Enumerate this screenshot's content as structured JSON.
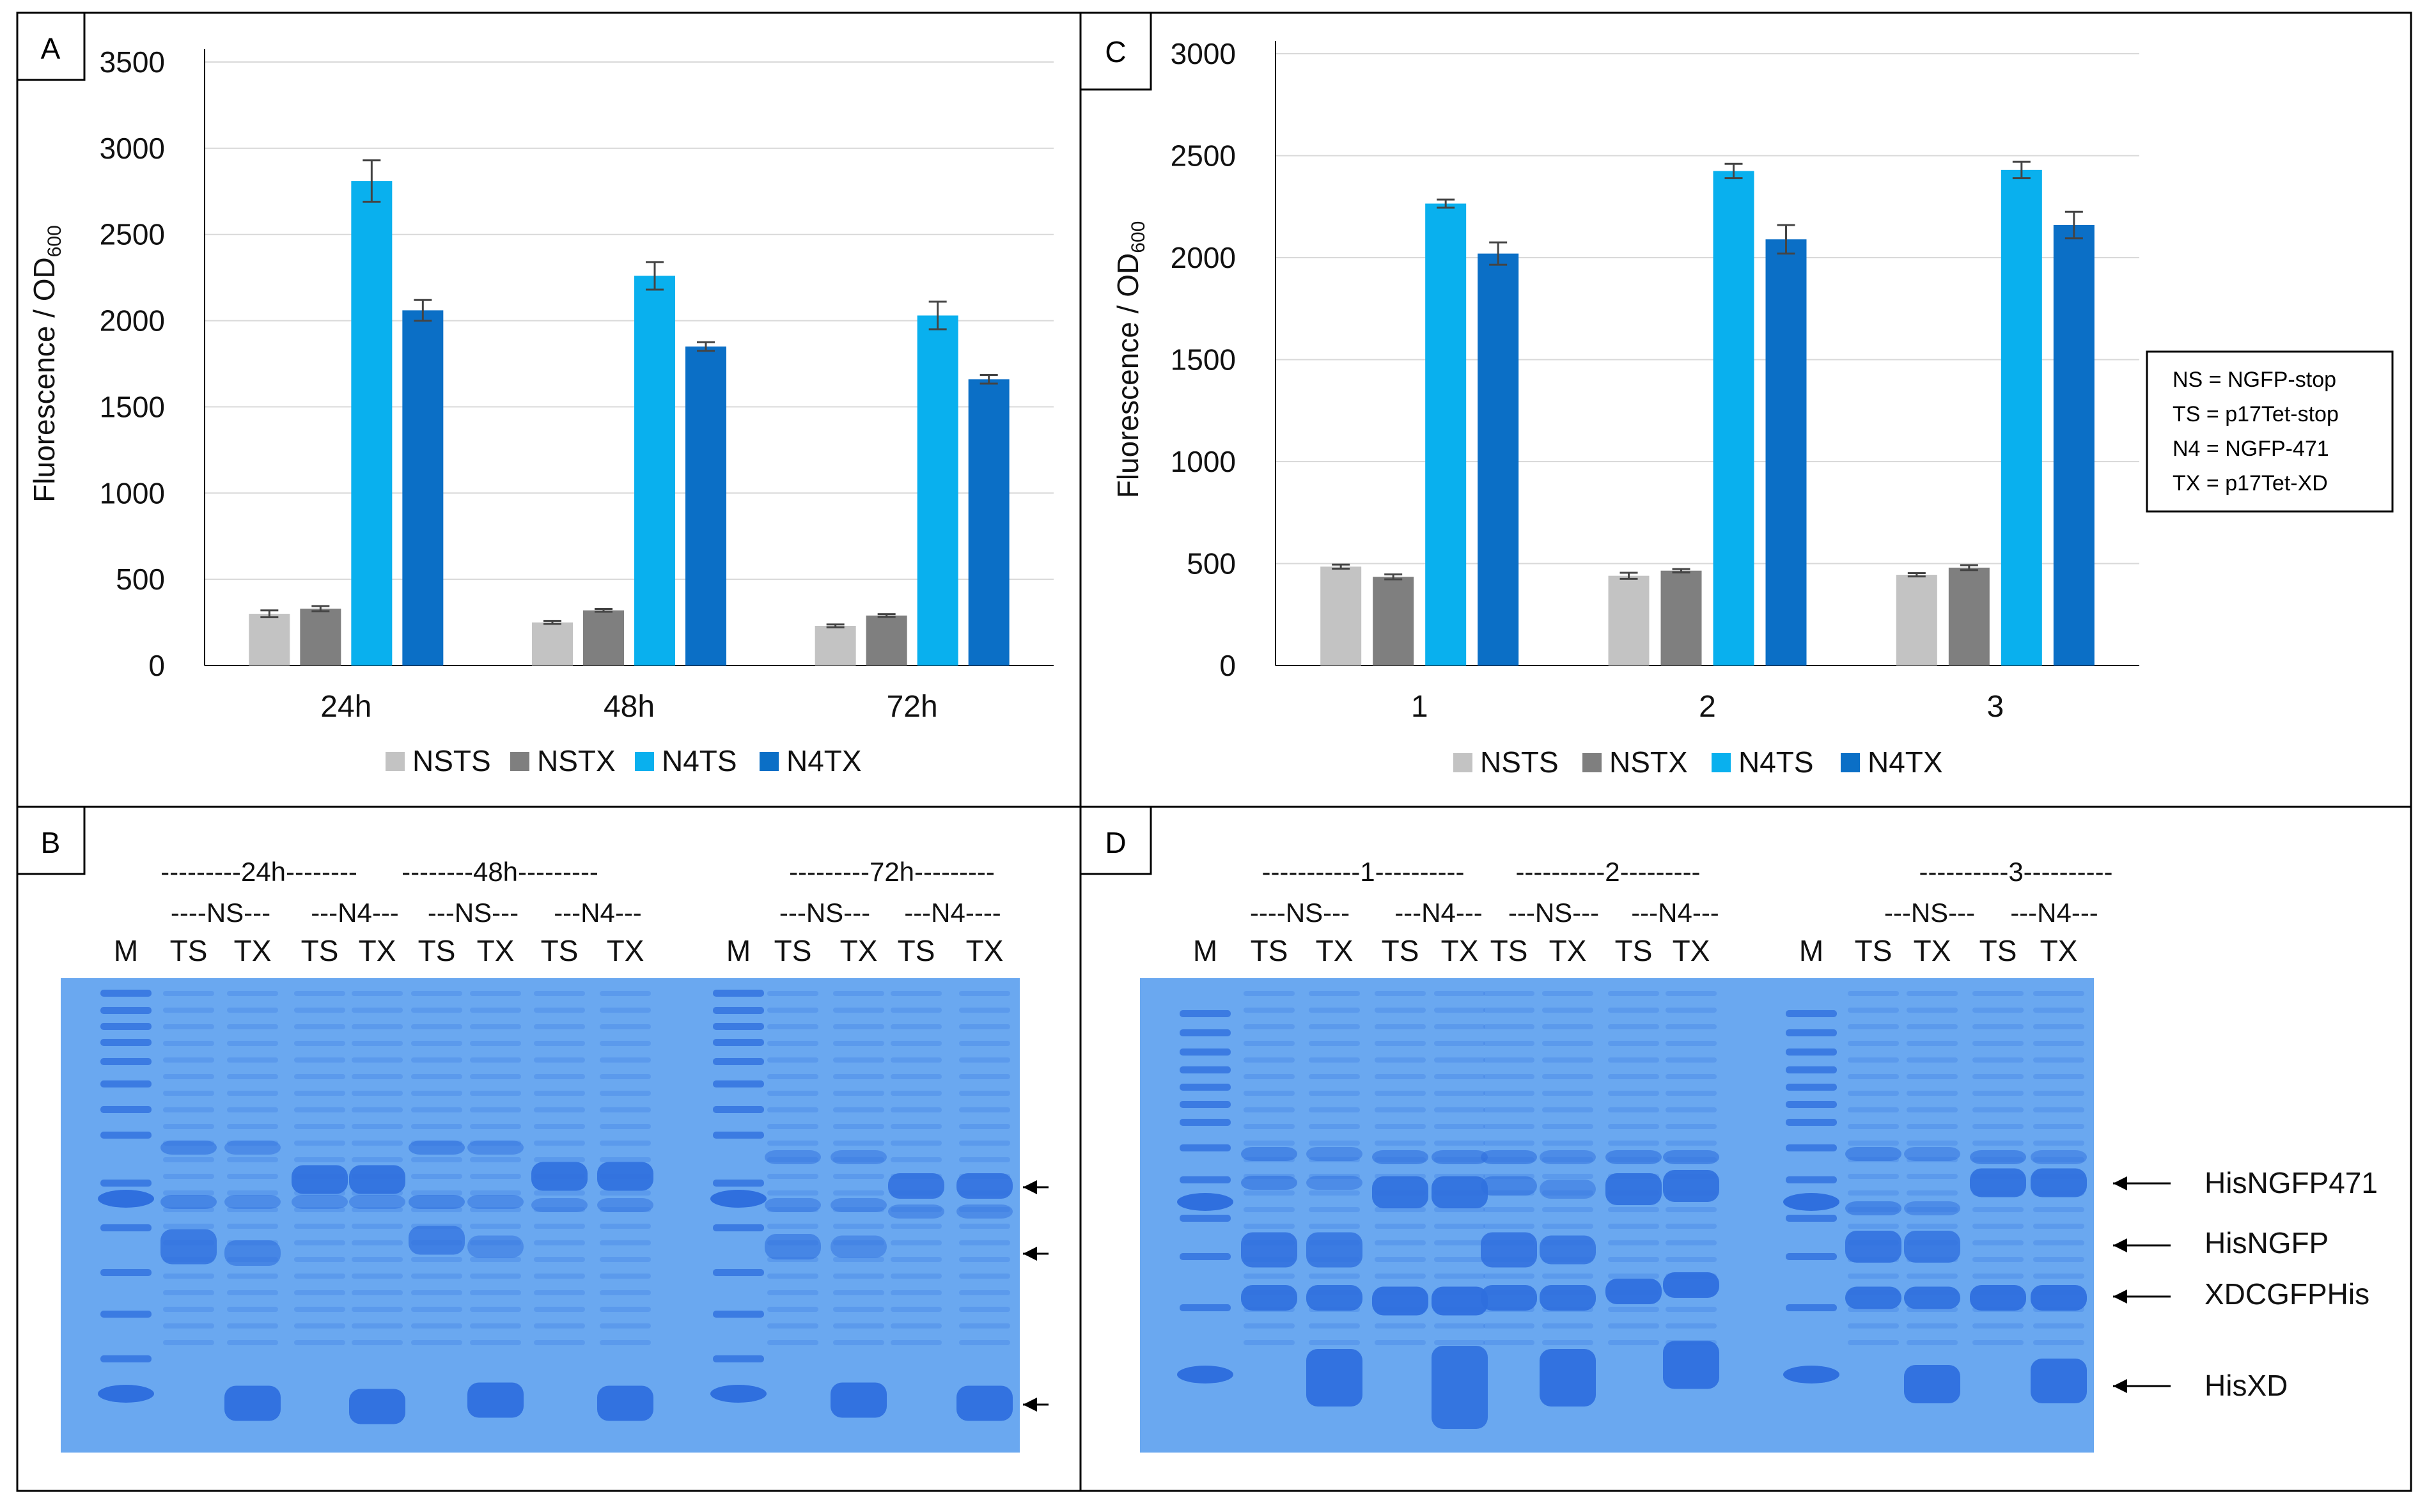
{
  "colors": {
    "NSTS": "#c3c3c3",
    "NSTX": "#7f7f7f",
    "N4TS": "#09b0ee",
    "N4TX": "#0b6fc6",
    "gel": "#6aa8f0",
    "band": "#2f6fde"
  },
  "chart_data": [
    {
      "panel": "A",
      "type": "bar",
      "ylabel": "Fluorescence / OD600",
      "ylim": [
        0,
        3500
      ],
      "yticks": [
        0,
        500,
        1000,
        1500,
        2000,
        2500,
        3000,
        3500
      ],
      "categories": [
        "24h",
        "48h",
        "72h"
      ],
      "series": [
        {
          "name": "NSTS",
          "values": [
            300,
            250,
            230
          ],
          "errors": [
            20,
            8,
            8
          ]
        },
        {
          "name": "NSTX",
          "values": [
            330,
            320,
            290
          ],
          "errors": [
            15,
            8,
            8
          ]
        },
        {
          "name": "N4TS",
          "values": [
            2810,
            2260,
            2030
          ],
          "errors": [
            120,
            80,
            80
          ]
        },
        {
          "name": "N4TX",
          "values": [
            2060,
            1850,
            1660
          ],
          "errors": [
            60,
            25,
            25
          ]
        }
      ],
      "legend": "bottom"
    },
    {
      "panel": "C",
      "type": "bar",
      "ylabel": "Fluorescence / OD600",
      "ylim": [
        0,
        3000
      ],
      "yticks": [
        0,
        500,
        1000,
        1500,
        2000,
        2500,
        3000
      ],
      "categories": [
        "1",
        "2",
        "3"
      ],
      "series": [
        {
          "name": "NSTS",
          "values": [
            485,
            440,
            445
          ],
          "errors": [
            10,
            15,
            8
          ]
        },
        {
          "name": "NSTX",
          "values": [
            435,
            465,
            480
          ],
          "errors": [
            12,
            8,
            12
          ]
        },
        {
          "name": "N4TS",
          "values": [
            2265,
            2425,
            2430
          ],
          "errors": [
            20,
            35,
            40
          ]
        },
        {
          "name": "N4TX",
          "values": [
            2020,
            2090,
            2160
          ],
          "errors": [
            55,
            70,
            65
          ]
        }
      ],
      "legend": "bottom"
    }
  ],
  "panels": {
    "A": "A",
    "B": "B",
    "C": "C",
    "D": "D"
  },
  "key_box": {
    "lines": [
      "NS = NGFP-stop",
      "TS = p17Tet-stop",
      "N4 = NGFP-471",
      "TX = p17Tet-XD"
    ]
  },
  "gel_B": {
    "time_labels": [
      "---------24h--------",
      "--------48h---------",
      "---------72h---------"
    ],
    "group_labels": [
      "----NS---",
      "---N4---",
      "---NS---",
      "---N4---",
      "---NS---",
      "---N4----"
    ],
    "lane_labels": [
      "M",
      "TS",
      "TX",
      "TS",
      "TX",
      "TS",
      "TX",
      "TS",
      "TX",
      "M",
      "TS",
      "TX",
      "TS",
      "TX"
    ]
  },
  "gel_D": {
    "sample_labels": [
      "-----------1----------",
      "----------2---------",
      "----------3----------"
    ],
    "group_labels": [
      "----NS---",
      "---N4---",
      "---NS---",
      "---N4---",
      "---NS---",
      "---N4---"
    ],
    "lane_labels": [
      "M",
      "TS",
      "TX",
      "TS",
      "TX",
      "TS",
      "TX",
      "TS",
      "TX",
      "M",
      "TS",
      "TX",
      "TS",
      "TX"
    ],
    "band_labels": [
      "HisNGFP471",
      "HisNGFP",
      "XDCGFPHis",
      "HisXD"
    ]
  }
}
